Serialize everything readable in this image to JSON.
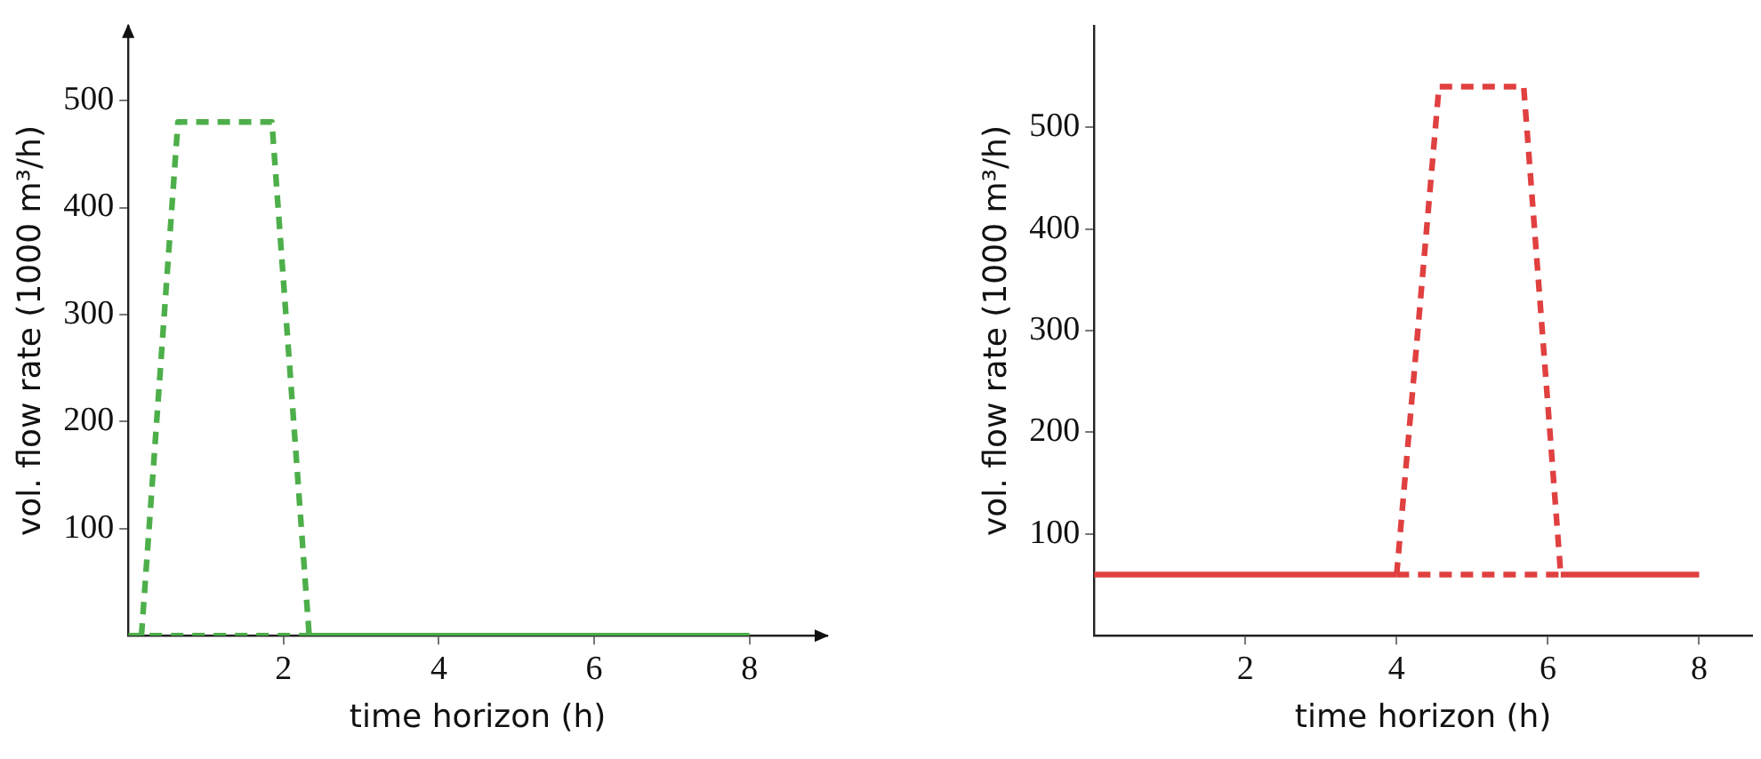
{
  "chart_data": [
    {
      "type": "line",
      "xlabel": "time horizon (h)",
      "ylabel": "vol. flow rate (1000 m³/h)",
      "xlim": [
        0,
        9
      ],
      "ylim": [
        0,
        570
      ],
      "xticks": [
        2,
        4,
        6,
        8
      ],
      "yticks": [
        100,
        200,
        300,
        400,
        500
      ],
      "grid": false,
      "series": [
        {
          "color": "#4daf4a",
          "line_style": "dashed",
          "x": [
            0.17,
            0.64,
            1.85,
            2.33
          ],
          "values": [
            0,
            480,
            480,
            0
          ]
        },
        {
          "color": "#4daf4a",
          "line_style": "dashed",
          "x": [
            0,
            2.33
          ],
          "values": [
            0,
            0
          ]
        },
        {
          "color": "#4daf4a",
          "line_style": "solid",
          "x": [
            2.33,
            8
          ],
          "values": [
            0,
            0
          ]
        }
      ]
    },
    {
      "type": "line",
      "xlabel": "time horizon (h)",
      "ylabel": "vol. flow rate (1000 m³/h)",
      "xlim": [
        0,
        8.7
      ],
      "ylim": [
        0,
        600
      ],
      "xticks": [
        2,
        4,
        6,
        8
      ],
      "yticks": [
        100,
        200,
        300,
        400,
        500
      ],
      "grid": false,
      "series": [
        {
          "color": "#e04040",
          "line_style": "solid",
          "x": [
            0,
            4
          ],
          "values": [
            60,
            60
          ]
        },
        {
          "color": "#e04040",
          "line_style": "dashed",
          "x": [
            4,
            4.56,
            5.68,
            6.17
          ],
          "values": [
            60,
            540,
            540,
            60
          ]
        },
        {
          "color": "#e04040",
          "line_style": "dashed",
          "x": [
            4,
            6.17
          ],
          "values": [
            60,
            60
          ]
        },
        {
          "color": "#e04040",
          "line_style": "solid",
          "x": [
            6.17,
            8
          ],
          "values": [
            60,
            60
          ]
        }
      ]
    }
  ]
}
